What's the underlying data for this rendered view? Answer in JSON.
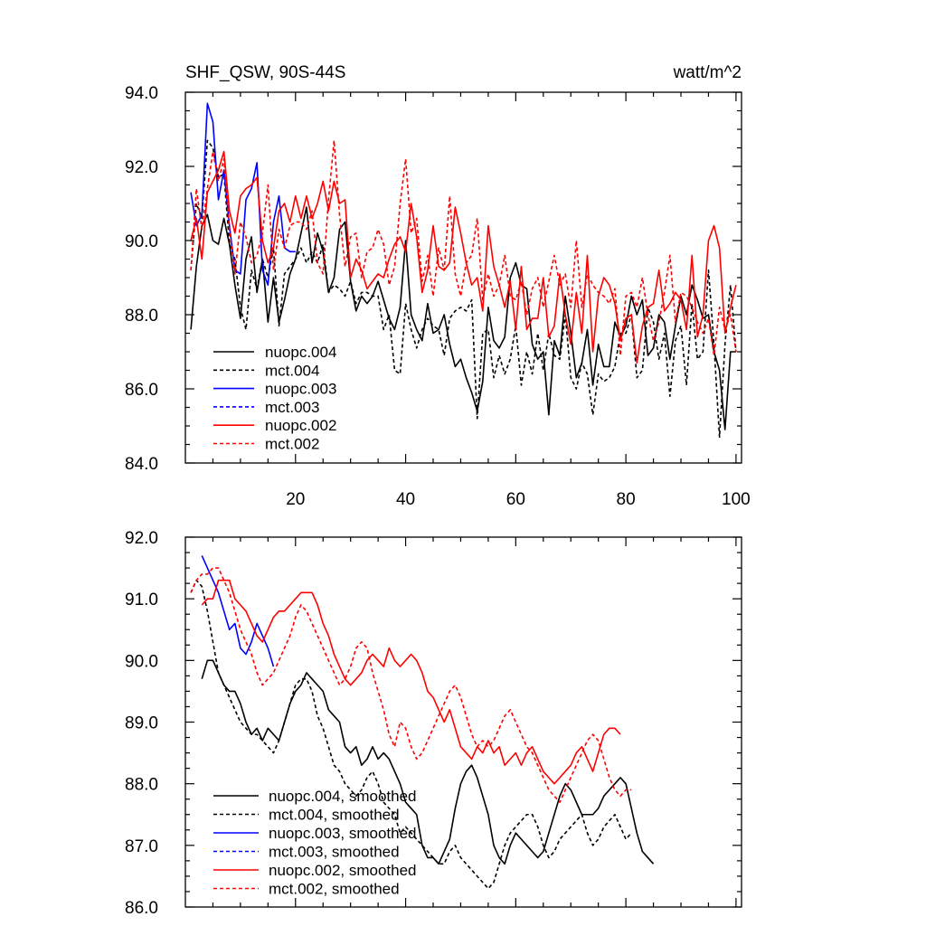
{
  "chart_data": [
    {
      "type": "line",
      "title": "SHF_QSW, 90S-44S",
      "units": "watt/m^2",
      "xlabel": "",
      "ylabel": "",
      "xlim": [
        0,
        101
      ],
      "ylim": [
        84.0,
        94.0
      ],
      "xticks": [
        20,
        40,
        60,
        80,
        100
      ],
      "xtick_labels": [
        "20",
        "40",
        "60",
        "80",
        "100"
      ],
      "yticks": [
        84.0,
        86.0,
        88.0,
        90.0,
        92.0,
        94.0
      ],
      "ytick_labels": [
        "84.0",
        "86.0",
        "88.0",
        "90.0",
        "92.0",
        "94.0"
      ],
      "legend_position": "bottom-left",
      "series": [
        {
          "name": "nuopc.004",
          "color": "#000000",
          "dash": "solid",
          "x_start": 1,
          "values": [
            87.6,
            89.3,
            90.4,
            90.7,
            90.0,
            89.9,
            90.6,
            89.9,
            88.8,
            87.9,
            89.5,
            90.1,
            88.6,
            89.5,
            87.8,
            89.0,
            87.8,
            88.4,
            89.1,
            89.5,
            90.2,
            90.9,
            89.4,
            90.2,
            89.7,
            88.6,
            89.0,
            90.3,
            90.5,
            88.9,
            88.1,
            88.5,
            88.3,
            88.5,
            88.9,
            88.4,
            87.9,
            87.6,
            88.2,
            90.0,
            88.0,
            87.6,
            87.3,
            88.3,
            87.5,
            87.6,
            88.0,
            87.2,
            86.6,
            86.8,
            86.3,
            85.9,
            85.4,
            86.2,
            88.2,
            87.3,
            87.1,
            87.4,
            89.0,
            89.4,
            88.8,
            88.7,
            87.2,
            86.8,
            87.0,
            85.3,
            87.3,
            86.9,
            88.5,
            87.5,
            86.3,
            86.7,
            87.6,
            86.1,
            87.2,
            86.6,
            86.6,
            87.8,
            87.4,
            87.7,
            88.5,
            88.0,
            88.4,
            86.9,
            87.1,
            88.0,
            87.8,
            86.8,
            87.7,
            88.5,
            88.0,
            88.8,
            88.4,
            87.9,
            88.0,
            87.0,
            86.5,
            84.9,
            87.0,
            87.0
          ]
        },
        {
          "name": "mct.004",
          "color": "#000000",
          "dash": "dashed",
          "x_start": 1,
          "values": [
            89.2,
            91.0,
            90.6,
            92.7,
            92.5,
            91.7,
            91.8,
            89.9,
            89.5,
            88.2,
            87.6,
            89.2,
            88.7,
            89.5,
            89.0,
            89.8,
            87.7,
            89.1,
            89.3,
            89.5,
            89.8,
            89.4,
            89.7,
            89.4,
            89.9,
            88.6,
            88.8,
            88.7,
            88.5,
            88.9,
            88.3,
            88.6,
            88.6,
            88.5,
            88.5,
            87.6,
            88.0,
            86.5,
            86.4,
            88.3,
            87.6,
            87.1,
            87.6,
            87.9,
            87.7,
            87.6,
            86.9,
            87.9,
            88.1,
            88.2,
            88.1,
            88.4,
            85.2,
            87.5,
            87.6,
            86.3,
            86.9,
            86.4,
            86.8,
            87.7,
            86.1,
            87.0,
            86.4,
            87.5,
            86.5,
            87.5,
            86.9,
            86.8,
            88.0,
            86.3,
            86.0,
            86.7,
            86.4,
            85.3,
            86.4,
            86.2,
            86.3,
            86.6,
            87.5,
            87.5,
            88.0,
            86.3,
            86.5,
            88.2,
            87.8,
            86.8,
            87.5,
            85.8,
            87.3,
            87.7,
            86.1,
            88.3,
            86.8,
            87.0,
            89.2,
            87.2,
            84.7,
            87.2,
            88.8,
            87.0
          ]
        },
        {
          "name": "nuopc.003",
          "color": "#0000ff",
          "dash": "solid",
          "x_start": 1,
          "values": [
            91.3,
            90.4,
            90.7,
            93.7,
            93.2,
            91.1,
            91.9,
            90.4,
            89.2,
            89.1,
            91.1,
            91.4,
            92.1,
            89.2,
            88.8,
            90.5,
            91.2,
            89.8,
            89.7,
            89.7
          ]
        },
        {
          "name": "mct.003",
          "color": "#0000ff",
          "dash": "dashed",
          "x_start": 1,
          "values": []
        },
        {
          "name": "nuopc.002",
          "color": "#ff0000",
          "dash": "solid",
          "x_start": 1,
          "values": [
            90.0,
            90.6,
            89.5,
            91.3,
            91.6,
            91.9,
            92.4,
            90.8,
            90.2,
            91.2,
            91.4,
            91.5,
            91.7,
            90.0,
            89.4,
            89.8,
            90.8,
            91.0,
            90.5,
            91.2,
            90.6,
            91.2,
            90.6,
            91.0,
            91.6,
            90.8,
            91.6,
            91.0,
            91.1,
            89.0,
            89.5,
            89.2,
            88.7,
            88.9,
            89.1,
            89.0,
            89.5,
            89.9,
            90.1,
            89.7,
            91.0,
            90.1,
            88.6,
            89.2,
            90.4,
            89.3,
            89.2,
            89.4,
            90.9,
            90.2,
            89.4,
            88.8,
            89.0,
            88.1,
            90.4,
            89.3,
            88.8,
            88.2,
            88.9,
            87.6,
            89.3,
            87.6,
            87.9,
            87.9,
            89.0,
            87.4,
            87.7,
            89.1,
            88.0,
            87.2,
            88.6,
            87.5,
            89.6,
            87.0,
            88.5,
            89.0,
            88.8,
            88.3,
            87.3,
            87.9,
            88.0,
            86.7,
            87.7,
            88.2,
            88.3,
            89.2,
            88.1,
            88.3,
            88.6,
            88.4,
            87.6,
            89.6,
            87.4,
            88.0,
            90.0,
            90.4,
            89.8,
            87.5,
            88.2,
            88.8
          ]
        },
        {
          "name": "mct.002",
          "color": "#ff0000",
          "dash": "dashed",
          "x_start": 1,
          "values": [
            89.2,
            91.4,
            90.3,
            91.4,
            92.4,
            91.6,
            92.2,
            90.3,
            89.1,
            90.5,
            90.1,
            89.4,
            89.6,
            90.2,
            91.5,
            89.2,
            90.3,
            89.8,
            90.4,
            90.5,
            90.5,
            90.3,
            90.8,
            89.4,
            89.1,
            91.1,
            92.7,
            90.7,
            89.3,
            90.1,
            90.2,
            89.0,
            89.7,
            89.8,
            90.3,
            89.9,
            88.8,
            89.3,
            91.0,
            92.2,
            90.2,
            90.6,
            88.9,
            89.6,
            88.5,
            89.8,
            89.2,
            91.2,
            89.1,
            88.5,
            89.4,
            89.6,
            90.6,
            88.4,
            89.1,
            88.5,
            88.8,
            89.6,
            88.5,
            88.4,
            88.9,
            88.0,
            88.7,
            89.0,
            88.2,
            88.9,
            89.6,
            88.8,
            89.1,
            88.2,
            90.0,
            88.2,
            89.1,
            88.8,
            88.6,
            88.5,
            88.3,
            88.7,
            86.9,
            88.5,
            88.6,
            88.2,
            89.0,
            88.0,
            87.3,
            87.8,
            88.6,
            89.6,
            87.8,
            88.6,
            88.5,
            88.2,
            87.8,
            87.5,
            87.9,
            86.9,
            88.2,
            87.6,
            88.0,
            87.0
          ]
        }
      ]
    },
    {
      "type": "line",
      "title": "",
      "xlabel": "",
      "ylabel": "",
      "xlim": [
        0,
        101
      ],
      "ylim": [
        86.0,
        92.0
      ],
      "xticks": [
        20,
        40,
        60,
        80,
        100
      ],
      "xtick_labels": [],
      "yticks": [
        86.0,
        87.0,
        88.0,
        89.0,
        90.0,
        91.0,
        92.0
      ],
      "ytick_labels": [
        "86.0",
        "87.0",
        "88.0",
        "89.0",
        "90.0",
        "91.0",
        "92.0"
      ],
      "legend_position": "bottom-left",
      "series": [
        {
          "name": "nuopc.004, smoothed",
          "color": "#000000",
          "dash": "solid",
          "x_start": 3,
          "values": [
            89.7,
            90.0,
            90.0,
            89.8,
            89.6,
            89.5,
            89.5,
            89.3,
            89.0,
            88.8,
            88.9,
            88.7,
            88.9,
            88.8,
            88.7,
            89.0,
            89.3,
            89.5,
            89.6,
            89.8,
            89.7,
            89.6,
            89.5,
            89.2,
            89.1,
            89.0,
            88.6,
            88.5,
            88.6,
            88.3,
            88.4,
            88.6,
            88.4,
            88.5,
            88.4,
            88.2,
            88.0,
            87.7,
            87.6,
            87.5,
            87.0,
            86.8,
            86.8,
            86.7,
            86.9,
            87.1,
            87.6,
            88.0,
            88.2,
            88.3,
            88.1,
            87.8,
            87.5,
            87.0,
            86.8,
            86.7,
            87.0,
            87.2,
            87.1,
            87.0,
            86.9,
            86.8,
            86.9,
            87.2,
            87.5,
            87.8,
            88.0,
            87.9,
            87.7,
            87.5,
            87.5,
            87.5,
            87.6,
            87.8,
            87.9,
            88.0,
            88.1,
            88.0,
            87.6,
            87.2,
            86.9,
            86.8,
            86.7
          ]
        },
        {
          "name": "mct.004, smoothed",
          "color": "#000000",
          "dash": "dashed",
          "x_start": 1,
          "values": [
            91.1,
            91.3,
            91.2,
            90.8,
            90.3,
            89.8,
            89.6,
            89.4,
            89.2,
            89.0,
            88.9,
            88.8,
            88.8,
            88.7,
            88.6,
            88.5,
            88.7,
            89.0,
            89.3,
            89.6,
            89.7,
            89.7,
            89.5,
            89.1,
            88.9,
            88.6,
            88.3,
            88.2,
            88.0,
            87.9,
            87.8,
            87.9,
            88.1,
            88.2,
            88.0,
            87.7,
            87.6,
            87.5,
            87.2,
            87.3,
            87.2,
            87.1,
            87.0,
            86.9,
            86.8,
            86.7,
            86.7,
            86.9,
            87.0,
            86.8,
            86.7,
            86.6,
            86.5,
            86.4,
            86.3,
            86.4,
            86.7,
            87.0,
            87.2,
            87.3,
            87.4,
            87.5,
            87.5,
            87.3,
            87.0,
            86.8,
            86.9,
            87.1,
            87.2,
            87.3,
            87.4,
            87.5,
            87.2,
            87.0,
            87.1,
            87.3,
            87.4,
            87.5,
            87.3,
            87.1,
            87.2
          ]
        },
        {
          "name": "nuopc.003, smoothed",
          "color": "#0000ff",
          "dash": "solid",
          "x_start": 3,
          "values": [
            91.7,
            91.5,
            91.3,
            91.1,
            90.8,
            90.5,
            90.6,
            90.2,
            90.1,
            90.3,
            90.6,
            90.4,
            90.2,
            89.9
          ]
        },
        {
          "name": "mct.003, smoothed",
          "color": "#0000ff",
          "dash": "dashed",
          "x_start": 1,
          "values": []
        },
        {
          "name": "nuopc.002, smoothed",
          "color": "#ff0000",
          "dash": "solid",
          "x_start": 3,
          "values": [
            90.9,
            91.0,
            91.0,
            91.3,
            91.3,
            91.3,
            91.0,
            90.9,
            90.8,
            90.6,
            90.4,
            90.3,
            90.5,
            90.7,
            90.8,
            90.8,
            90.9,
            91.0,
            91.1,
            91.1,
            91.1,
            90.9,
            90.6,
            90.4,
            90.1,
            89.9,
            89.7,
            89.6,
            89.7,
            89.8,
            90.0,
            90.1,
            90.0,
            89.9,
            90.2,
            90.0,
            89.9,
            90.0,
            90.1,
            90.0,
            89.8,
            89.5,
            89.4,
            89.2,
            89.0,
            89.2,
            88.9,
            88.6,
            88.5,
            88.4,
            88.6,
            88.5,
            88.7,
            88.5,
            88.6,
            88.3,
            88.4,
            88.5,
            88.3,
            88.5,
            88.6,
            88.4,
            88.2,
            88.1,
            88.0,
            88.1,
            88.2,
            88.3,
            88.5,
            88.6,
            88.4,
            88.2,
            88.5,
            88.8,
            88.9,
            88.9,
            88.8
          ]
        },
        {
          "name": "mct.002, smoothed",
          "color": "#ff0000",
          "dash": "dashed",
          "x_start": 1,
          "values": [
            91.1,
            91.3,
            91.4,
            91.4,
            91.5,
            91.5,
            91.3,
            91.1,
            90.8,
            90.5,
            90.3,
            90.1,
            89.8,
            89.6,
            89.7,
            89.8,
            90.0,
            90.2,
            90.4,
            90.7,
            90.9,
            90.8,
            90.6,
            90.4,
            90.2,
            90.0,
            89.8,
            89.6,
            89.7,
            89.9,
            90.2,
            90.3,
            90.2,
            89.8,
            89.5,
            89.2,
            88.8,
            88.6,
            89.0,
            88.9,
            88.6,
            88.4,
            88.5,
            88.7,
            88.9,
            89.1,
            89.3,
            89.5,
            89.6,
            89.4,
            89.1,
            88.8,
            88.6,
            88.7,
            88.6,
            88.7,
            88.9,
            89.1,
            89.2,
            89.0,
            88.8,
            88.6,
            88.5,
            88.3,
            88.1,
            87.9,
            87.8,
            87.7,
            87.9,
            88.1,
            88.3,
            88.5,
            88.7,
            88.8,
            88.7,
            88.4,
            88.1,
            87.9,
            87.8,
            87.9,
            87.9
          ]
        }
      ]
    }
  ]
}
